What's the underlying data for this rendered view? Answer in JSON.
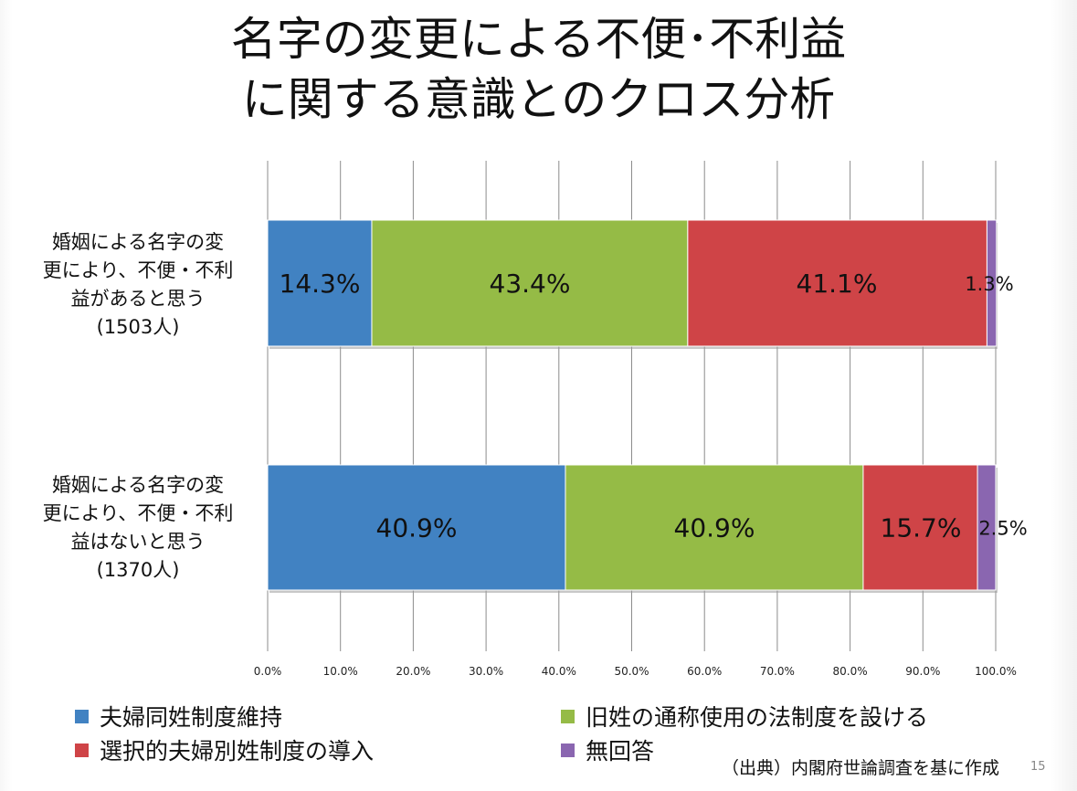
{
  "title": {
    "line1": "名字の変更による不便･不利益",
    "line2": "に関する意識とのクロス分析"
  },
  "chart_data": {
    "type": "bar",
    "orientation": "horizontal",
    "stacked": true,
    "categories": [
      {
        "lines": [
          "婚姻による名字の変",
          "更により、不便・不利",
          "益があると思う",
          "(1503人)"
        ]
      },
      {
        "lines": [
          "婚姻による名字の変",
          "更により、不便・不利",
          "益はないと思う",
          "(1370人)"
        ]
      }
    ],
    "series": [
      {
        "name": "夫婦同姓制度維持",
        "color": "#4182c2",
        "values": [
          14.3,
          40.9
        ],
        "labels": [
          "14.3%",
          "40.9%"
        ]
      },
      {
        "name": "旧姓の通称使用の法制度を設ける",
        "color": "#95bb46",
        "values": [
          43.4,
          40.9
        ],
        "labels": [
          "43.4%",
          "40.9%"
        ]
      },
      {
        "name": "選択的夫婦別姓制度の導入",
        "color": "#cf4447",
        "values": [
          41.1,
          15.7
        ],
        "labels": [
          "41.1%",
          "15.7%"
        ]
      },
      {
        "name": "無回答",
        "color": "#8a66b0",
        "values": [
          1.3,
          2.5
        ],
        "labels": [
          "1.3%",
          "2.5%"
        ]
      }
    ],
    "xlim": [
      0,
      100
    ],
    "xticks": [
      "0.0%",
      "10.0%",
      "20.0%",
      "30.0%",
      "40.0%",
      "50.0%",
      "60.0%",
      "70.0%",
      "80.0%",
      "90.0%",
      "100.0%"
    ],
    "grid": true,
    "legend_position": "bottom"
  },
  "source": "（出典）内閣府世論調査を基に作成",
  "page_number": "15"
}
